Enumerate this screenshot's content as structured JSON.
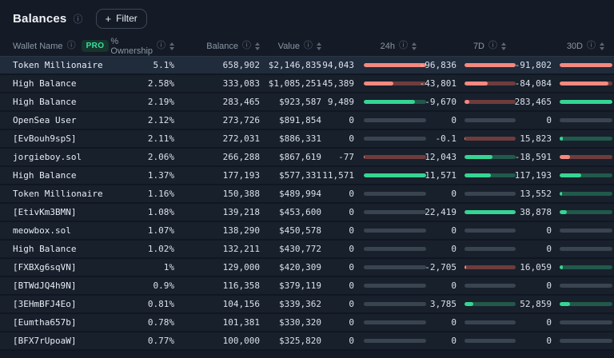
{
  "page": {
    "title": "Balances"
  },
  "toolbar": {
    "filter_label": "Filter"
  },
  "icons": {
    "info": "ⓘ",
    "plus": "+"
  },
  "colors": {
    "positive_fill": "#36d593",
    "positive_track": "#21594a",
    "negative_fill": "#f4897f",
    "negative_track": "#6e3c3c",
    "neutral_track": "#3a4450",
    "pro_badge_text": "#38e0a0",
    "pro_badge_bg": "#17352d",
    "selected_row_bg": "#202b3b"
  },
  "table": {
    "columns": [
      {
        "label": "Wallet Name",
        "badge": "PRO"
      },
      {
        "label": "% Ownership"
      },
      {
        "label": "Balance"
      },
      {
        "label": "Value"
      },
      {
        "label": "24h"
      },
      {
        "label": "7D"
      },
      {
        "label": "30D"
      }
    ],
    "rows": [
      {
        "wallet": "Token Millionaire",
        "ownership": "5.1%",
        "balance": "658,902",
        "value": "$2,146,835",
        "selected": true,
        "h24": {
          "text": "-94,043",
          "trend": "neg",
          "fill": 100
        },
        "d7": {
          "text": "-96,836",
          "trend": "neg",
          "fill": 100
        },
        "d30": {
          "text": "-91,802",
          "trend": "neg",
          "fill": 100
        }
      },
      {
        "wallet": "High Balance",
        "ownership": "2.58%",
        "balance": "333,083",
        "value": "$1,085,251",
        "selected": false,
        "h24": {
          "text": "-45,389",
          "trend": "neg",
          "fill": 48
        },
        "d7": {
          "text": "-43,801",
          "trend": "neg",
          "fill": 45
        },
        "d30": {
          "text": "-84,084",
          "trend": "neg",
          "fill": 92
        }
      },
      {
        "wallet": "High Balance",
        "ownership": "2.19%",
        "balance": "283,465",
        "value": "$923,587",
        "selected": false,
        "h24": {
          "text": "9,489",
          "trend": "pos",
          "fill": 82
        },
        "d7": {
          "text": "-9,670",
          "trend": "neg",
          "fill": 10
        },
        "d30": {
          "text": "283,465",
          "trend": "pos",
          "fill": 100
        }
      },
      {
        "wallet": "OpenSea User",
        "ownership": "2.12%",
        "balance": "273,726",
        "value": "$891,854",
        "selected": false,
        "h24": {
          "text": "0",
          "trend": "zero",
          "fill": 0
        },
        "d7": {
          "text": "0",
          "trend": "zero",
          "fill": 0
        },
        "d30": {
          "text": "0",
          "trend": "zero",
          "fill": 0
        }
      },
      {
        "wallet": "[EvBouh9spS]",
        "ownership": "2.11%",
        "balance": "272,031",
        "value": "$886,331",
        "selected": false,
        "h24": {
          "text": "0",
          "trend": "zero",
          "fill": 0
        },
        "d7": {
          "text": "-0.1",
          "trend": "neg",
          "fill": 2
        },
        "d30": {
          "text": "15,823",
          "trend": "pos",
          "fill": 6
        }
      },
      {
        "wallet": "jorgieboy.sol",
        "ownership": "2.06%",
        "balance": "266,288",
        "value": "$867,619",
        "selected": false,
        "h24": {
          "text": "-77",
          "trend": "neg",
          "fill": 1
        },
        "d7": {
          "text": "12,043",
          "trend": "pos",
          "fill": 54
        },
        "d30": {
          "text": "-18,591",
          "trend": "neg",
          "fill": 20
        }
      },
      {
        "wallet": "High Balance",
        "ownership": "1.37%",
        "balance": "177,193",
        "value": "$577,331",
        "selected": false,
        "h24": {
          "text": "11,571",
          "trend": "pos",
          "fill": 100
        },
        "d7": {
          "text": "11,571",
          "trend": "pos",
          "fill": 52
        },
        "d30": {
          "text": "117,193",
          "trend": "pos",
          "fill": 41
        }
      },
      {
        "wallet": "Token Millionaire",
        "ownership": "1.16%",
        "balance": "150,388",
        "value": "$489,994",
        "selected": false,
        "h24": {
          "text": "0",
          "trend": "zero",
          "fill": 0
        },
        "d7": {
          "text": "0",
          "trend": "zero",
          "fill": 0
        },
        "d30": {
          "text": "13,552",
          "trend": "pos",
          "fill": 5
        }
      },
      {
        "wallet": "[EtivKm3BMN]",
        "ownership": "1.08%",
        "balance": "139,218",
        "value": "$453,600",
        "selected": false,
        "h24": {
          "text": "0",
          "trend": "zero",
          "fill": 0
        },
        "d7": {
          "text": "22,419",
          "trend": "pos",
          "fill": 100
        },
        "d30": {
          "text": "38,878",
          "trend": "pos",
          "fill": 14
        }
      },
      {
        "wallet": "meowbox.sol",
        "ownership": "1.07%",
        "balance": "138,290",
        "value": "$450,578",
        "selected": false,
        "h24": {
          "text": "0",
          "trend": "zero",
          "fill": 0
        },
        "d7": {
          "text": "0",
          "trend": "zero",
          "fill": 0
        },
        "d30": {
          "text": "0",
          "trend": "zero",
          "fill": 0
        }
      },
      {
        "wallet": "High Balance",
        "ownership": "1.02%",
        "balance": "132,211",
        "value": "$430,772",
        "selected": false,
        "h24": {
          "text": "0",
          "trend": "zero",
          "fill": 0
        },
        "d7": {
          "text": "0",
          "trend": "zero",
          "fill": 0
        },
        "d30": {
          "text": "0",
          "trend": "zero",
          "fill": 0
        }
      },
      {
        "wallet": "[FXBXg6sqVN]",
        "ownership": "1%",
        "balance": "129,000",
        "value": "$420,309",
        "selected": false,
        "h24": {
          "text": "0",
          "trend": "zero",
          "fill": 0
        },
        "d7": {
          "text": "-2,705",
          "trend": "neg",
          "fill": 3
        },
        "d30": {
          "text": "16,059",
          "trend": "pos",
          "fill": 6
        }
      },
      {
        "wallet": "[BTWdJQ4h9N]",
        "ownership": "0.9%",
        "balance": "116,358",
        "value": "$379,119",
        "selected": false,
        "h24": {
          "text": "0",
          "trend": "zero",
          "fill": 0
        },
        "d7": {
          "text": "0",
          "trend": "zero",
          "fill": 0
        },
        "d30": {
          "text": "0",
          "trend": "zero",
          "fill": 0
        }
      },
      {
        "wallet": "[3EHmBFJ4Eo]",
        "ownership": "0.81%",
        "balance": "104,156",
        "value": "$339,362",
        "selected": false,
        "h24": {
          "text": "0",
          "trend": "zero",
          "fill": 0
        },
        "d7": {
          "text": "3,785",
          "trend": "pos",
          "fill": 17
        },
        "d30": {
          "text": "52,859",
          "trend": "pos",
          "fill": 19
        }
      },
      {
        "wallet": "[Eumtha657b]",
        "ownership": "0.78%",
        "balance": "101,381",
        "value": "$330,320",
        "selected": false,
        "h24": {
          "text": "0",
          "trend": "zero",
          "fill": 0
        },
        "d7": {
          "text": "0",
          "trend": "zero",
          "fill": 0
        },
        "d30": {
          "text": "0",
          "trend": "zero",
          "fill": 0
        }
      },
      {
        "wallet": "[BFX7rUpoaW]",
        "ownership": "0.77%",
        "balance": "100,000",
        "value": "$325,820",
        "selected": false,
        "h24": {
          "text": "0",
          "trend": "zero",
          "fill": 0
        },
        "d7": {
          "text": "0",
          "trend": "zero",
          "fill": 0
        },
        "d30": {
          "text": "0",
          "trend": "zero",
          "fill": 0
        }
      }
    ]
  }
}
